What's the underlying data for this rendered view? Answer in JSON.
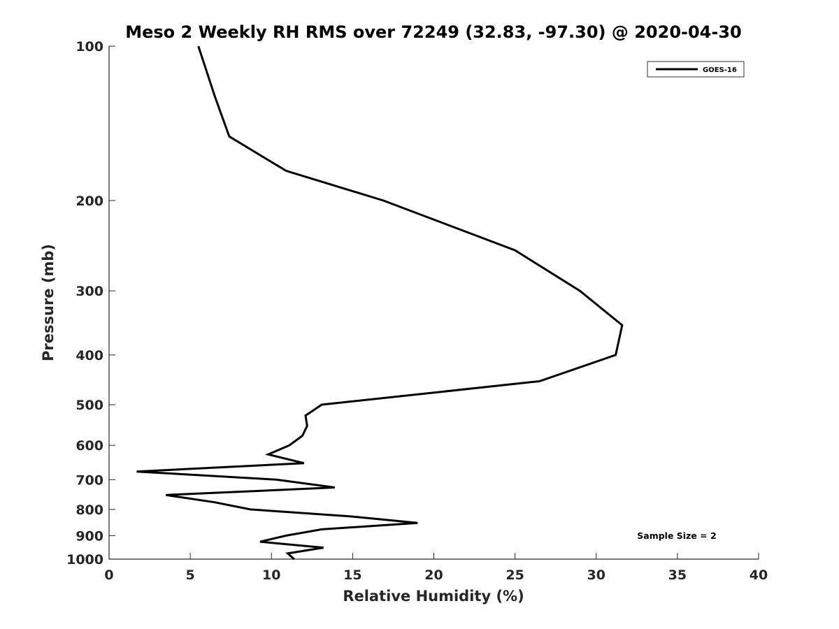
{
  "chart_data": {
    "type": "line",
    "title": "Meso 2 Weekly RH RMS over 72249 (32.83, -97.30) @ 2020-04-30",
    "xlabel": "Relative Humidity (%)",
    "ylabel": "Pressure (mb)",
    "xlim": [
      0,
      40
    ],
    "ylim": [
      100,
      1000
    ],
    "y_scale": "log",
    "y_reversed": true,
    "grid": false,
    "legend_position": "top-right",
    "x_ticks": [
      0,
      5,
      10,
      15,
      20,
      25,
      30,
      35,
      40
    ],
    "x_tick_labels": [
      "0",
      "5",
      "10",
      "15",
      "20",
      "25",
      "30",
      "35",
      "40"
    ],
    "y_ticks": [
      100,
      200,
      300,
      400,
      500,
      600,
      700,
      800,
      900,
      1000
    ],
    "y_tick_labels": [
      "100",
      "200",
      "300",
      "400",
      "500",
      "600",
      "700",
      "800",
      "900",
      "1000"
    ],
    "series": [
      {
        "name": "GOES-16",
        "color": "#000000",
        "points": [
          {
            "x": 5.5,
            "p": 100
          },
          {
            "x": 6.5,
            "p": 125
          },
          {
            "x": 7.4,
            "p": 150
          },
          {
            "x": 10.9,
            "p": 175
          },
          {
            "x": 16.9,
            "p": 200
          },
          {
            "x": 25.0,
            "p": 250
          },
          {
            "x": 29.0,
            "p": 300
          },
          {
            "x": 31.6,
            "p": 350
          },
          {
            "x": 31.2,
            "p": 400
          },
          {
            "x": 26.5,
            "p": 450
          },
          {
            "x": 13.1,
            "p": 500
          },
          {
            "x": 12.1,
            "p": 525
          },
          {
            "x": 12.2,
            "p": 550
          },
          {
            "x": 11.9,
            "p": 575
          },
          {
            "x": 11.1,
            "p": 600
          },
          {
            "x": 9.8,
            "p": 625
          },
          {
            "x": 12.0,
            "p": 650
          },
          {
            "x": 1.7,
            "p": 675
          },
          {
            "x": 10.3,
            "p": 700
          },
          {
            "x": 13.9,
            "p": 725
          },
          {
            "x": 3.5,
            "p": 750
          },
          {
            "x": 6.5,
            "p": 775
          },
          {
            "x": 8.7,
            "p": 800
          },
          {
            "x": 14.8,
            "p": 825
          },
          {
            "x": 19.0,
            "p": 850
          },
          {
            "x": 13.1,
            "p": 875
          },
          {
            "x": 10.9,
            "p": 900
          },
          {
            "x": 9.3,
            "p": 925
          },
          {
            "x": 13.2,
            "p": 950
          },
          {
            "x": 11.0,
            "p": 975
          },
          {
            "x": 11.4,
            "p": 1000
          }
        ]
      }
    ],
    "legend_entries": [
      "GOES-16"
    ],
    "annotation": "Sample Size = 2"
  }
}
